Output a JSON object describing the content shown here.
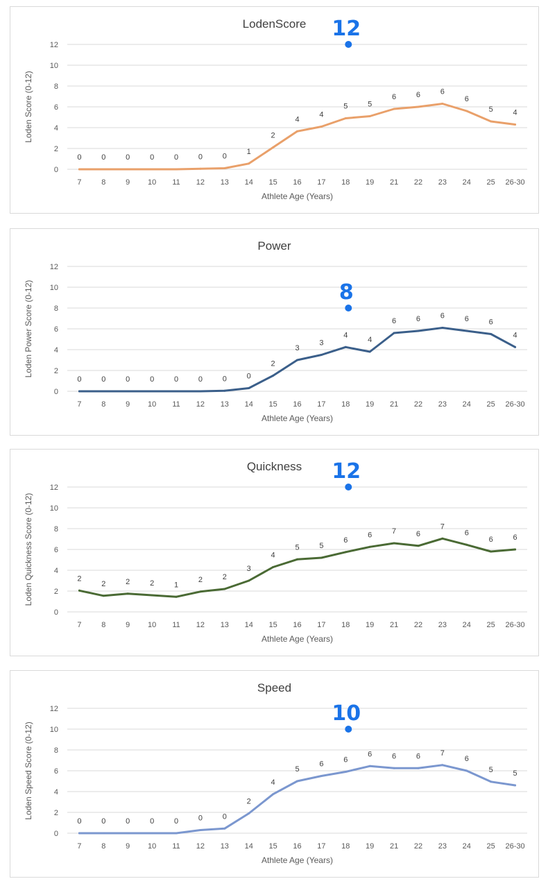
{
  "chart_data": [
    {
      "type": "line",
      "title": "LodenScore",
      "xlabel": "Athlete Age (Years)",
      "ylabel": "Loden Score (0-12)",
      "ylim": [
        0,
        12
      ],
      "yticks": [
        0,
        2,
        4,
        6,
        8,
        10,
        12
      ],
      "categories": [
        "7",
        "8",
        "9",
        "10",
        "11",
        "12",
        "13",
        "14",
        "15",
        "16",
        "17",
        "18",
        "19",
        "21",
        "22",
        "23",
        "24",
        "25",
        "26-30"
      ],
      "values": [
        0,
        0,
        0,
        0,
        0,
        0.05,
        0.1,
        0.55,
        2.1,
        3.65,
        4.1,
        4.9,
        5.1,
        5.8,
        6.0,
        6.3,
        5.6,
        4.6,
        4.3
      ],
      "data_labels": [
        "0",
        "0",
        "0",
        "0",
        "0",
        "0",
        "0",
        "1",
        "2",
        "4",
        "4",
        "5",
        "5",
        "6",
        "6",
        "6",
        "6",
        "5",
        "4"
      ],
      "color": "#e9a06a",
      "annotation": {
        "text": "12",
        "category": "18",
        "value": 12
      }
    },
    {
      "type": "line",
      "title": "Power",
      "xlabel": "Athlete Age (Years)",
      "ylabel": "Loden Power Score (0-12)",
      "ylim": [
        0,
        12
      ],
      "yticks": [
        0,
        2,
        4,
        6,
        8,
        10,
        12
      ],
      "categories": [
        "7",
        "8",
        "9",
        "10",
        "11",
        "12",
        "13",
        "14",
        "15",
        "16",
        "17",
        "18",
        "19",
        "21",
        "22",
        "23",
        "24",
        "25",
        "26-30"
      ],
      "values": [
        0,
        0,
        0,
        0,
        0,
        0,
        0.05,
        0.3,
        1.5,
        3.0,
        3.5,
        4.25,
        3.8,
        5.6,
        5.8,
        6.1,
        5.8,
        5.5,
        4.25
      ],
      "data_labels": [
        "0",
        "0",
        "0",
        "0",
        "0",
        "0",
        "0",
        "0",
        "2",
        "3",
        "3",
        "4",
        "4",
        "6",
        "6",
        "6",
        "6",
        "6",
        "4"
      ],
      "color": "#3b5f8a",
      "annotation": {
        "text": "8",
        "category": "18",
        "value": 8
      }
    },
    {
      "type": "line",
      "title": "Quickness",
      "xlabel": "Athlete Age (Years)",
      "ylabel": "Loden Quickness Score (0-12)",
      "ylim": [
        0,
        12
      ],
      "yticks": [
        0,
        2,
        4,
        6,
        8,
        10,
        12
      ],
      "categories": [
        "7",
        "8",
        "9",
        "10",
        "11",
        "12",
        "13",
        "14",
        "15",
        "16",
        "17",
        "18",
        "19",
        "21",
        "22",
        "23",
        "24",
        "25",
        "26-30"
      ],
      "values": [
        2.05,
        1.55,
        1.75,
        1.6,
        1.45,
        1.95,
        2.2,
        3.0,
        4.3,
        5.05,
        5.2,
        5.75,
        6.25,
        6.6,
        6.35,
        7.05,
        6.45,
        5.8,
        6.0
      ],
      "data_labels": [
        "2",
        "2",
        "2",
        "2",
        "1",
        "2",
        "2",
        "3",
        "4",
        "5",
        "5",
        "6",
        "6",
        "7",
        "6",
        "7",
        "6",
        "6",
        "6"
      ],
      "color": "#4a6a34",
      "annotation": {
        "text": "12",
        "category": "18",
        "value": 12
      }
    },
    {
      "type": "line",
      "title": "Speed",
      "xlabel": "Athlete Age (Years)",
      "ylabel": "Loden Speed Score (0-12)",
      "ylim": [
        0,
        12
      ],
      "yticks": [
        0,
        2,
        4,
        6,
        8,
        10,
        12
      ],
      "categories": [
        "7",
        "8",
        "9",
        "10",
        "11",
        "12",
        "13",
        "14",
        "15",
        "16",
        "17",
        "18",
        "19",
        "21",
        "22",
        "23",
        "24",
        "25",
        "26-30"
      ],
      "values": [
        0,
        0,
        0,
        0,
        0,
        0.3,
        0.45,
        1.9,
        3.75,
        5.0,
        5.5,
        5.9,
        6.45,
        6.25,
        6.25,
        6.55,
        6.0,
        4.95,
        4.6
      ],
      "data_labels": [
        "0",
        "0",
        "0",
        "0",
        "0",
        "0",
        "0",
        "2",
        "4",
        "5",
        "6",
        "6",
        "6",
        "6",
        "6",
        "7",
        "6",
        "5",
        "5"
      ],
      "color": "#7b97cf",
      "annotation": {
        "text": "10",
        "category": "18",
        "value": 10
      }
    }
  ]
}
